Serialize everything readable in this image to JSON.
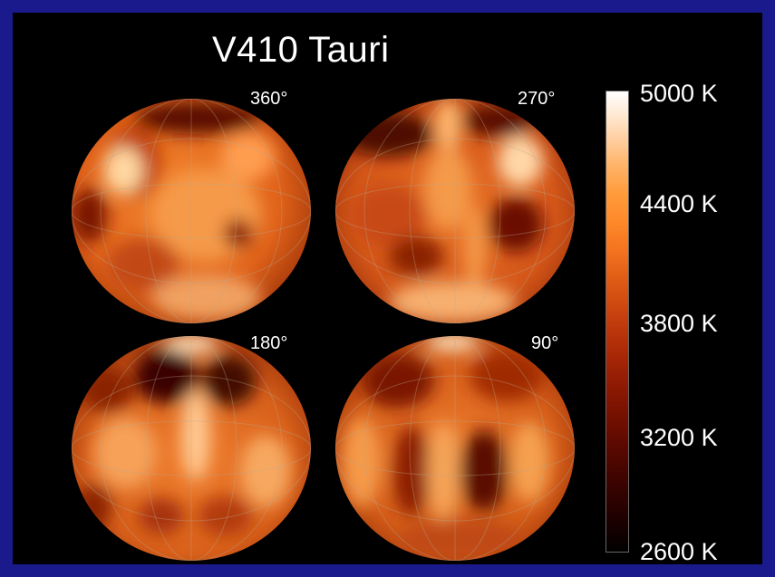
{
  "title": "V410 Tauri",
  "views": [
    {
      "angle": "360°"
    },
    {
      "angle": "270°"
    },
    {
      "angle": "180°"
    },
    {
      "angle": "90°"
    }
  ],
  "colorbar": {
    "labels": [
      "5000 K",
      "4400 K",
      "3800 K",
      "3200 K",
      "2600 K"
    ],
    "min_K": 2600,
    "max_K": 5000
  },
  "colors": {
    "background": "#1a1a8c",
    "panel": "#000000",
    "surface_base": "#e8641a",
    "hot_spot": "#ffd9a0",
    "cool_spot": "#4a0800"
  }
}
